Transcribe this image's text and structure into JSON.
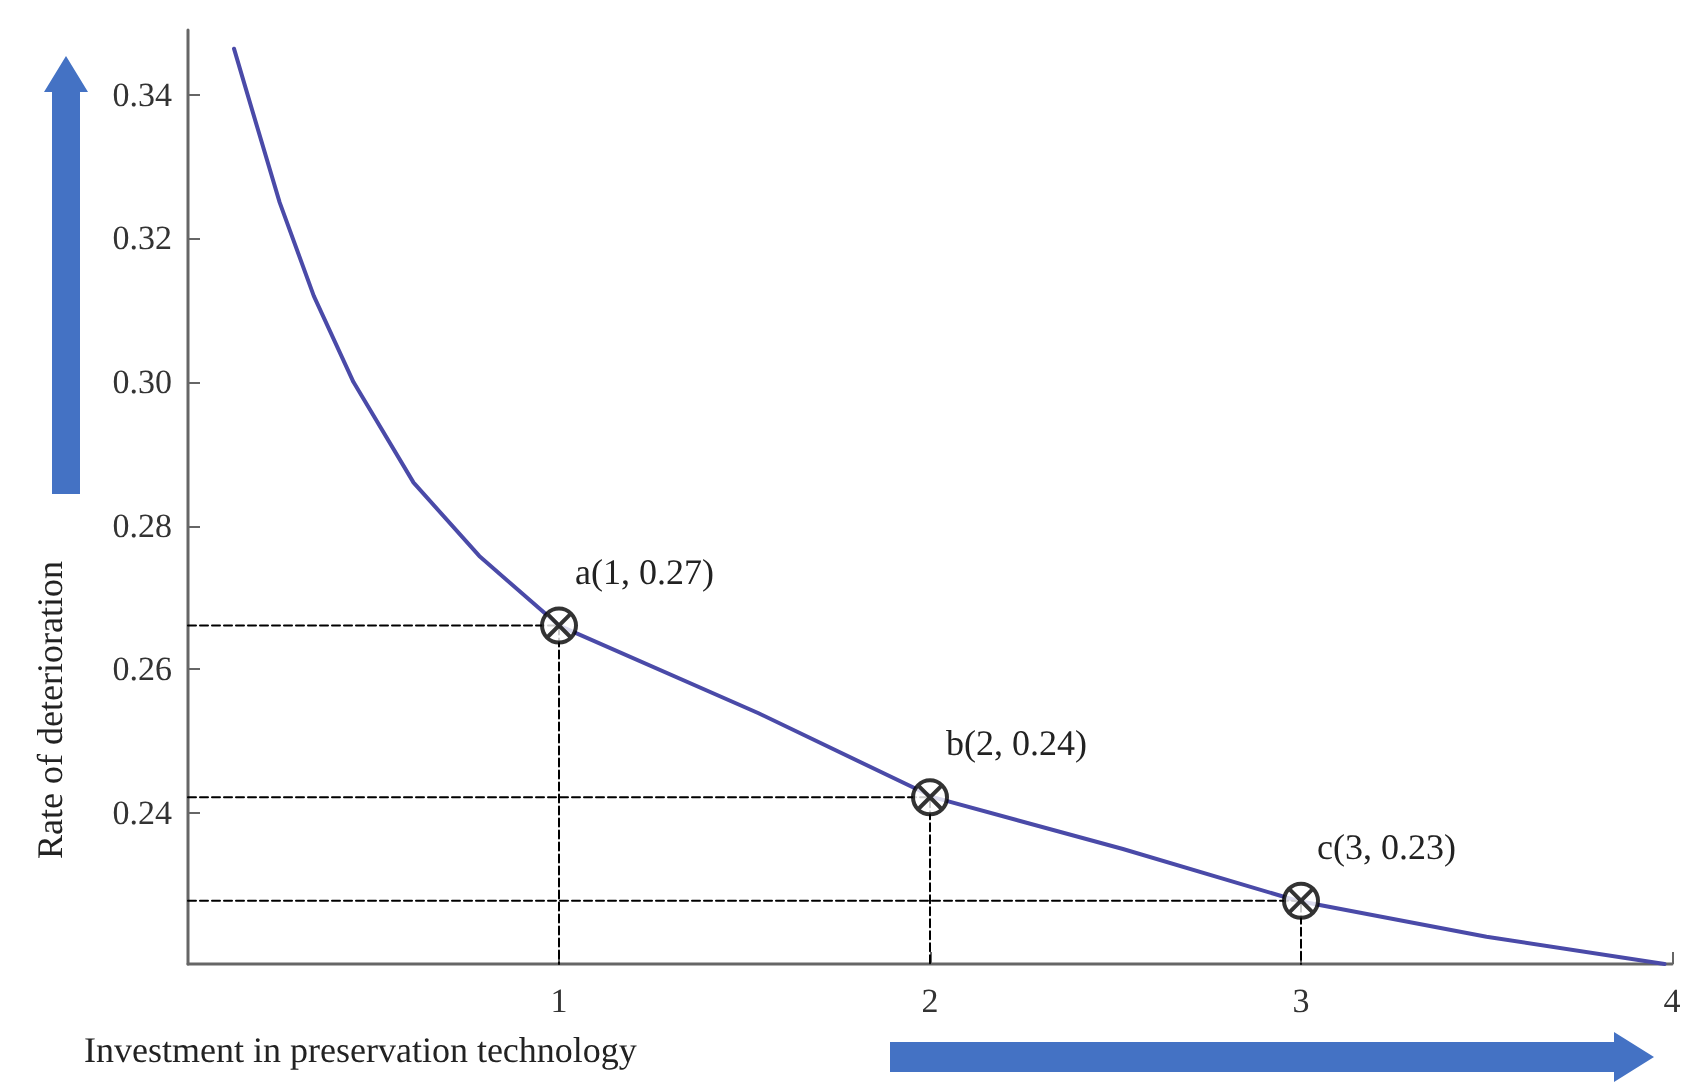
{
  "chart_data": {
    "type": "line",
    "xlabel": "Investment in preservation technology",
    "ylabel": "Rate of deterioration",
    "xlim": [
      0,
      4
    ],
    "ylim": [
      0.219,
      0.349
    ],
    "xticks": [
      1,
      2,
      3,
      4
    ],
    "yticks": [
      {
        "value": 0.24,
        "label": "0.24"
      },
      {
        "value": 0.26,
        "label": "0.26"
      },
      {
        "value": 0.28,
        "label": "0.28"
      },
      {
        "value": 0.3,
        "label": "0.30"
      },
      {
        "value": 0.32,
        "label": "0.32"
      },
      {
        "value": 0.34,
        "label": "0.34"
      }
    ],
    "annotations": [
      {
        "text": "a(1, 0.27)",
        "x": 1,
        "y": 0.2661
      },
      {
        "text": "b(2, 0.24)",
        "x": 2,
        "y": 0.2422
      },
      {
        "text": "c(3, 0.23)",
        "x": 3,
        "y": 0.2278
      }
    ],
    "series": [
      {
        "color": "#4a4aa8",
        "marker": "none",
        "line_style": "solid",
        "x": [
          0.124,
          0.156,
          0.247,
          0.339,
          0.446,
          0.608,
          0.785,
          1,
          1.538,
          2.01,
          2.52,
          2.99,
          3.5,
          3.98
        ],
        "values": [
          0.3464,
          0.3408,
          0.325,
          0.312,
          0.3,
          0.286,
          0.2758,
          0.2661,
          0.2539,
          0.2422,
          0.235,
          0.2278,
          0.2228,
          0.219
        ]
      },
      {
        "color": "#000000",
        "marker": "none",
        "line_style": "dashed",
        "x": [
          0,
          1,
          1
        ],
        "values": [
          0.2661,
          0.2661,
          0.219
        ]
      },
      {
        "color": "#000000",
        "marker": "none",
        "line_style": "dashed",
        "x": [
          0,
          2,
          2
        ],
        "values": [
          0.2422,
          0.2422,
          0.219
        ]
      },
      {
        "color": "#000000",
        "marker": "none",
        "line_style": "dashed",
        "x": [
          0,
          3,
          3
        ],
        "values": [
          0.2278,
          0.2278,
          0.219
        ]
      },
      {
        "type": "scatter",
        "color": "#000000",
        "marker": "cross",
        "x": [
          1,
          2,
          3
        ],
        "values": [
          0.2661,
          0.2422,
          0.2278
        ]
      }
    ]
  }
}
